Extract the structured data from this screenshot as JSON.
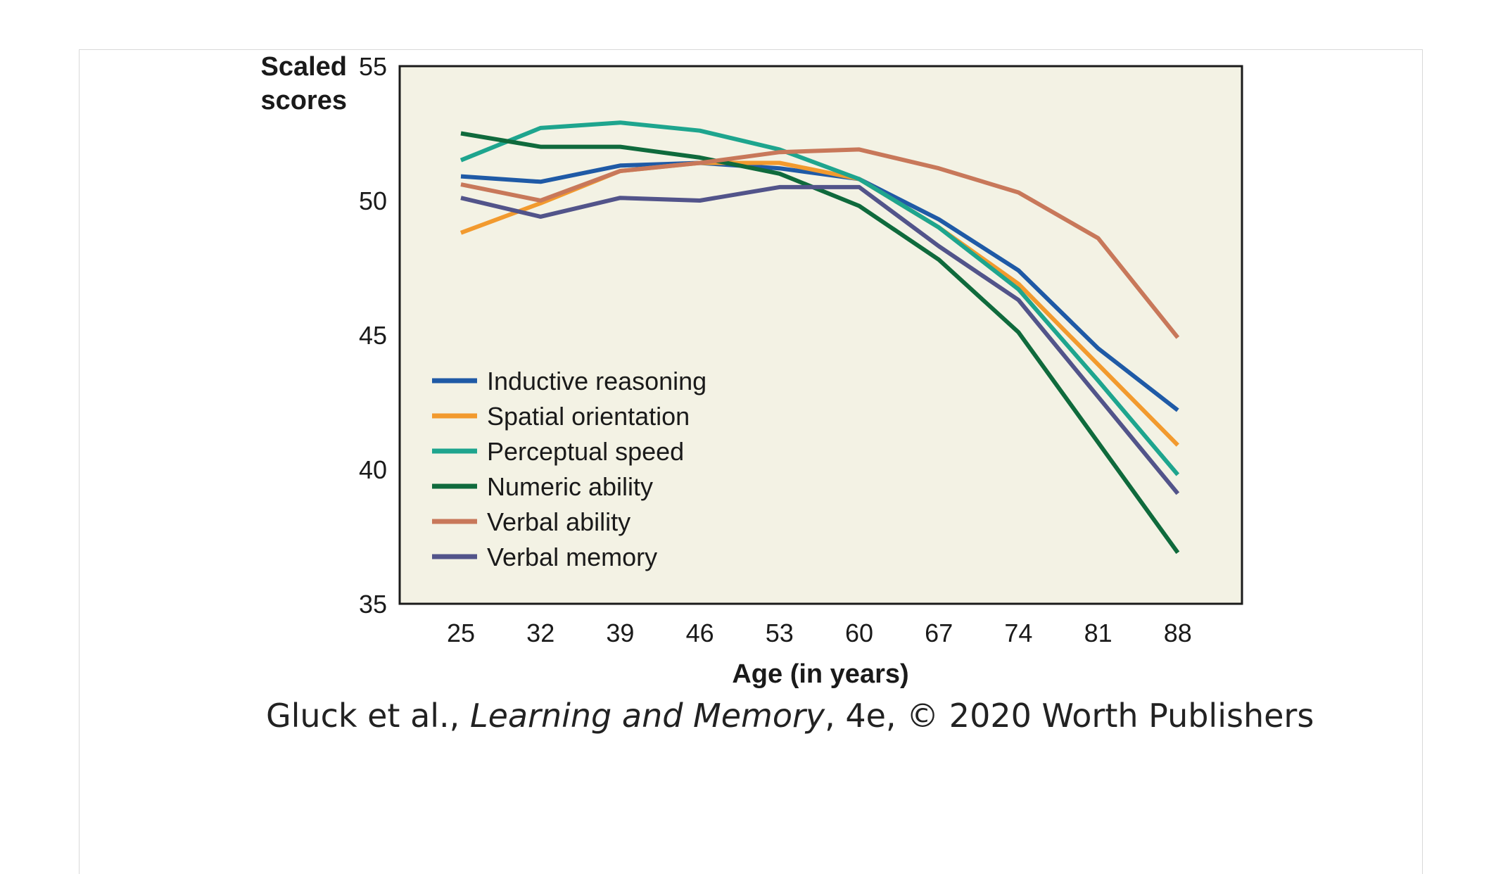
{
  "chart_data": {
    "type": "line",
    "title": "",
    "ylabel_lines": [
      "Scaled",
      "scores"
    ],
    "xlabel": "Age (in years)",
    "x": [
      25,
      32,
      39,
      46,
      53,
      60,
      67,
      74,
      81,
      88
    ],
    "ylim": [
      35,
      55
    ],
    "yticks": [
      35,
      40,
      45,
      50,
      55
    ],
    "plot_background": "#f3f2e4",
    "legend_position": "lower-left",
    "series": [
      {
        "name": "Inductive reasoning",
        "color": "#1f5aa6",
        "values": [
          50.9,
          50.7,
          51.3,
          51.4,
          51.2,
          50.8,
          49.3,
          47.4,
          44.5,
          42.2
        ]
      },
      {
        "name": "Spatial orientation",
        "color": "#f29a2e",
        "values": [
          48.8,
          49.9,
          51.1,
          51.4,
          51.4,
          50.8,
          49.0,
          46.9,
          43.9,
          40.9
        ]
      },
      {
        "name": "Perceptual speed",
        "color": "#1ea58e",
        "values": [
          51.5,
          52.7,
          52.9,
          52.6,
          51.9,
          50.8,
          49.0,
          46.7,
          43.3,
          39.8
        ]
      },
      {
        "name": "Numeric ability",
        "color": "#0f6a3c",
        "values": [
          52.5,
          52.0,
          52.0,
          51.6,
          51.0,
          49.8,
          47.8,
          45.1,
          41.0,
          36.9
        ]
      },
      {
        "name": "Verbal ability",
        "color": "#c8785a",
        "values": [
          50.6,
          50.0,
          51.1,
          51.4,
          51.8,
          51.9,
          51.2,
          50.3,
          48.6,
          44.9
        ]
      },
      {
        "name": "Verbal memory",
        "color": "#52548a",
        "values": [
          50.1,
          49.4,
          50.1,
          50.0,
          50.5,
          50.5,
          48.3,
          46.3,
          42.7,
          39.1
        ]
      }
    ]
  },
  "credit": {
    "authors": "Gluck et al., ",
    "book": "Learning and Memory",
    "rest": ", 4e, © 2020 Worth Publishers"
  }
}
